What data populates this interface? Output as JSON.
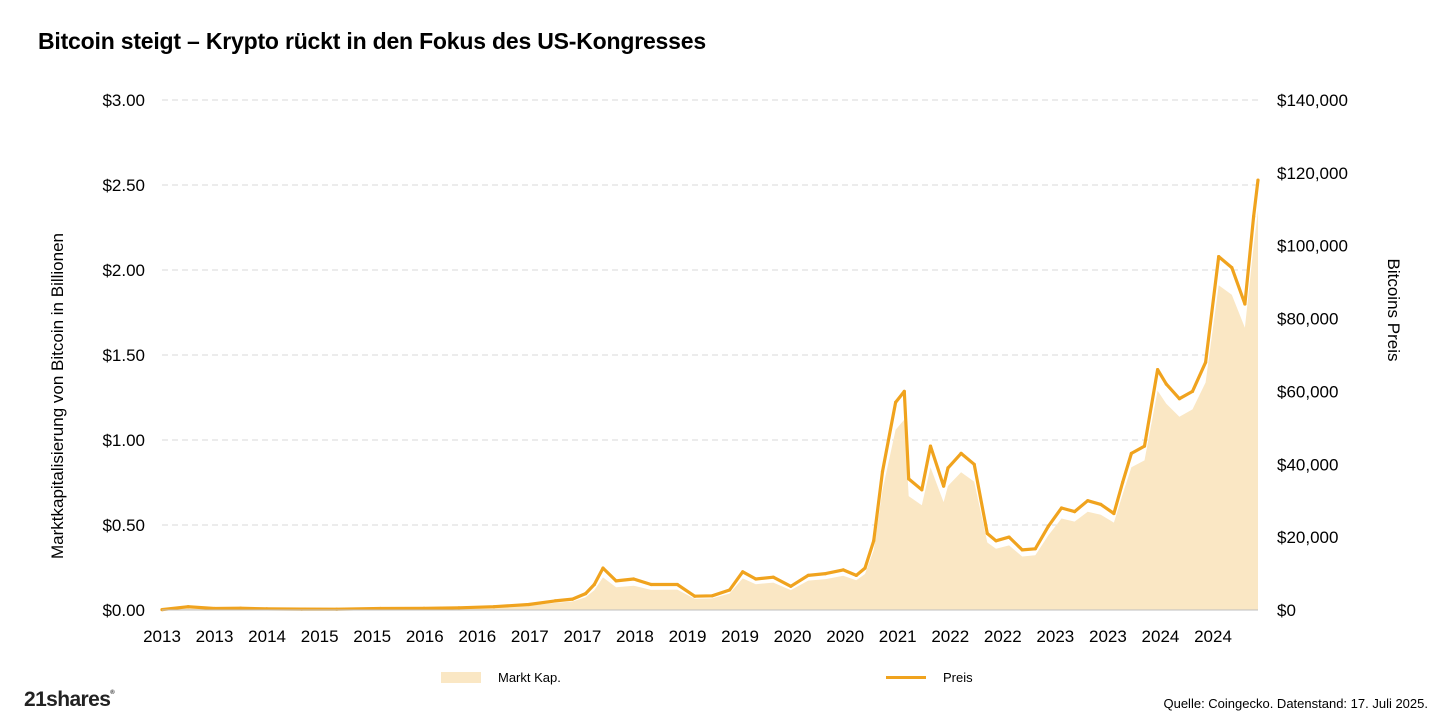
{
  "title": "Bitcoin steigt – Krypto rückt in den Fokus des US-Kongresses",
  "source": "Quelle: Coingecko. Datenstand: 17. Juli 2025.",
  "logo": "21shares",
  "colors": {
    "price": "#F0A31E",
    "marketcap_fill": "#FAE7C4",
    "grid": "#D9D9D9"
  },
  "chart_data": {
    "type": "area",
    "xlabel": "",
    "ylabel_left": "Marktkapitalisierung von Bitcoin in Billionen",
    "ylabel_right": "Bitcoins Preis",
    "x_tick_labels": [
      "2013",
      "2013",
      "2014",
      "2015",
      "2015",
      "2016",
      "2016",
      "2017",
      "2017",
      "2018",
      "2019",
      "2019",
      "2020",
      "2020",
      "2021",
      "2022",
      "2022",
      "2023",
      "2023",
      "2024",
      "2024"
    ],
    "y_left_ticks": [
      "$0.00",
      "$0.50",
      "$1.00",
      "$1.50",
      "$2.00",
      "$2.50",
      "$3.00"
    ],
    "y_right_ticks": [
      "$0",
      "$20,000",
      "$40,000",
      "$60,000",
      "$80,000",
      "$100,000",
      "$120,000",
      "$140,000"
    ],
    "y_left_range": [
      0,
      3.0
    ],
    "y_right_range": [
      0,
      140000
    ],
    "grid": true,
    "legend": {
      "placement": "bottom",
      "entries": [
        "Markt Kap.",
        "Preis"
      ]
    },
    "x": [
      2013.0,
      2013.3,
      2013.6,
      2013.9,
      2014.2,
      2014.6,
      2015.0,
      2015.5,
      2016.0,
      2016.4,
      2016.8,
      2017.2,
      2017.5,
      2017.7,
      2017.85,
      2017.95,
      2018.05,
      2018.2,
      2018.4,
      2018.6,
      2018.9,
      2019.1,
      2019.3,
      2019.5,
      2019.65,
      2019.8,
      2020.0,
      2020.2,
      2020.4,
      2020.6,
      2020.8,
      2020.95,
      2021.05,
      2021.15,
      2021.25,
      2021.4,
      2021.5,
      2021.55,
      2021.7,
      2021.8,
      2021.95,
      2022.0,
      2022.15,
      2022.3,
      2022.45,
      2022.55,
      2022.7,
      2022.85,
      2023.0,
      2023.15,
      2023.3,
      2023.45,
      2023.6,
      2023.75,
      2023.9,
      2024.0,
      2024.1,
      2024.25,
      2024.4,
      2024.5,
      2024.65,
      2024.8,
      2024.95,
      2025.1,
      2025.25,
      2025.4,
      2025.5,
      2025.55
    ],
    "series": [
      {
        "name": "Preis",
        "values": [
          100,
          900,
          400,
          500,
          300,
          250,
          230,
          400,
          450,
          600,
          900,
          1500,
          2500,
          3000,
          4500,
          7000,
          11500,
          8000,
          8500,
          7000,
          7000,
          3800,
          3900,
          5500,
          10500,
          8500,
          9000,
          6500,
          9500,
          10000,
          11000,
          9500,
          11500,
          19000,
          38000,
          57000,
          60000,
          36000,
          33000,
          45000,
          34000,
          39000,
          43000,
          40000,
          21000,
          19000,
          20000,
          16500,
          16800,
          23000,
          28000,
          27000,
          30000,
          29000,
          26500,
          35000,
          43000,
          45000,
          66000,
          62000,
          58000,
          60000,
          68000,
          97000,
          94000,
          84000,
          108000,
          118000
        ]
      },
      {
        "name": "Markt Kap.",
        "values": [
          0.001,
          0.011,
          0.005,
          0.006,
          0.004,
          0.0035,
          0.0032,
          0.006,
          0.007,
          0.009,
          0.015,
          0.025,
          0.042,
          0.05,
          0.075,
          0.116,
          0.192,
          0.134,
          0.143,
          0.118,
          0.12,
          0.066,
          0.068,
          0.097,
          0.186,
          0.152,
          0.161,
          0.117,
          0.173,
          0.182,
          0.202,
          0.175,
          0.212,
          0.352,
          0.706,
          1.06,
          1.12,
          0.67,
          0.616,
          0.84,
          0.635,
          0.73,
          0.81,
          0.755,
          0.397,
          0.36,
          0.38,
          0.315,
          0.322,
          0.44,
          0.538,
          0.52,
          0.578,
          0.56,
          0.514,
          0.68,
          0.84,
          0.88,
          1.29,
          1.213,
          1.137,
          1.18,
          1.338,
          1.91,
          1.855,
          1.66,
          2.14,
          2.35
        ]
      }
    ]
  }
}
